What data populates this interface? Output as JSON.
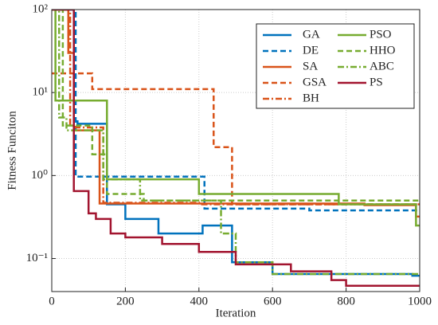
{
  "chart_data": {
    "type": "line",
    "drawstyle": "steps-post",
    "xlabel": "Iteration",
    "ylabel": "Fitness Funciton",
    "xlim": [
      0,
      1000
    ],
    "xticks": [
      0,
      200,
      400,
      600,
      800,
      1000
    ],
    "ylim": [
      0.04,
      100
    ],
    "yscale": "log",
    "yticks": [
      {
        "value": 0.1,
        "label": "10⁻¹"
      },
      {
        "value": 1,
        "label": "10⁰"
      },
      {
        "value": 10,
        "label": "10¹"
      },
      {
        "value": 100,
        "label": "10²"
      }
    ],
    "grid": true,
    "legend": "upper right",
    "series": [
      {
        "name": "GA",
        "color": "#0072bd",
        "style": "solid",
        "x": [
          0,
          60,
          70,
          150,
          200,
          290,
          410,
          490,
          600,
          980,
          1000
        ],
        "values": [
          100,
          4.5,
          4.2,
          0.45,
          0.3,
          0.2,
          0.25,
          0.09,
          0.065,
          0.062,
          0.062
        ]
      },
      {
        "name": "DE",
        "color": "#0072bd",
        "style": "dashed",
        "x": [
          0,
          65,
          415,
          700,
          1000
        ],
        "values": [
          100,
          0.97,
          0.4,
          0.38,
          0.38
        ]
      },
      {
        "name": "SA",
        "color": "#d95319",
        "style": "solid",
        "x": [
          0,
          45,
          60,
          130,
          850,
          990,
          1000
        ],
        "values": [
          100,
          30,
          3.5,
          0.46,
          0.44,
          0.32,
          0.32
        ]
      },
      {
        "name": "GSA",
        "color": "#d95319",
        "style": "dashed",
        "x": [
          0,
          110,
          440,
          490,
          1000
        ],
        "values": [
          17,
          11,
          2.2,
          0.45,
          0.45
        ]
      },
      {
        "name": "BH",
        "color": "#d95319",
        "style": "dashdot",
        "x": [
          0,
          50,
          65,
          140,
          400,
          1000
        ],
        "values": [
          100,
          4,
          3.8,
          0.47,
          0.45,
          0.45
        ]
      },
      {
        "name": "PSO",
        "color": "#77ac30",
        "style": "solid",
        "x": [
          0,
          10,
          150,
          400,
          780,
          990,
          1000
        ],
        "values": [
          100,
          8,
          0.9,
          0.6,
          0.45,
          0.25,
          0.25
        ]
      },
      {
        "name": "HHO",
        "color": "#77ac30",
        "style": "dashed",
        "x": [
          0,
          30,
          110,
          150,
          250,
          1000
        ],
        "values": [
          100,
          4,
          1.8,
          0.6,
          0.5,
          0.5
        ]
      },
      {
        "name": "ABC",
        "color": "#77ac30",
        "style": "dashdot",
        "x": [
          0,
          20,
          40,
          140,
          240,
          460,
          500,
          600,
          1000
        ],
        "values": [
          100,
          5,
          3.5,
          0.9,
          0.5,
          0.2,
          0.09,
          0.065,
          0.065
        ]
      },
      {
        "name": "PS",
        "color": "#a2142f",
        "style": "solid",
        "x": [
          0,
          60,
          100,
          120,
          160,
          200,
          300,
          400,
          500,
          650,
          760,
          800,
          1000
        ],
        "values": [
          100,
          0.65,
          0.35,
          0.3,
          0.2,
          0.18,
          0.15,
          0.12,
          0.085,
          0.07,
          0.055,
          0.047,
          0.047
        ]
      }
    ]
  }
}
